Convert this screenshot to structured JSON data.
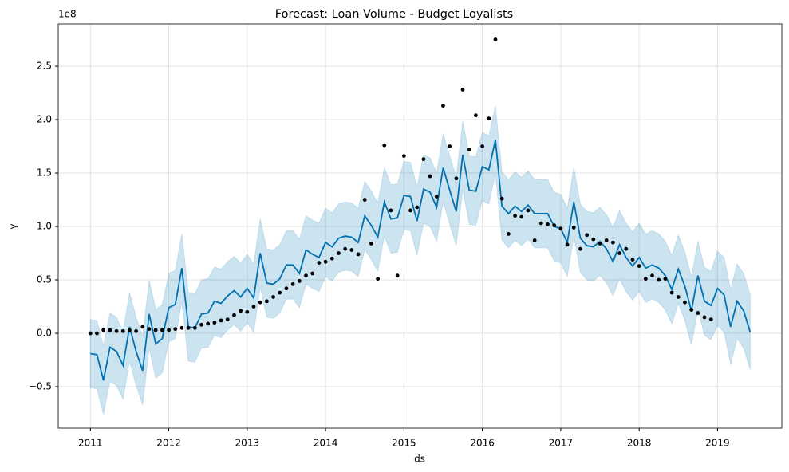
{
  "chart_data": {
    "type": "line",
    "title": "Forecast: Loan Volume - Budget Loyalists",
    "xlabel": "ds",
    "ylabel": "y",
    "y_offset_label": "1e8",
    "grid": true,
    "x": [
      "2011-01",
      "2011-02",
      "2011-03",
      "2011-04",
      "2011-05",
      "2011-06",
      "2011-07",
      "2011-08",
      "2011-09",
      "2011-10",
      "2011-11",
      "2011-12",
      "2012-01",
      "2012-02",
      "2012-03",
      "2012-04",
      "2012-05",
      "2012-06",
      "2012-07",
      "2012-08",
      "2012-09",
      "2012-10",
      "2012-11",
      "2012-12",
      "2013-01",
      "2013-02",
      "2013-03",
      "2013-04",
      "2013-05",
      "2013-06",
      "2013-07",
      "2013-08",
      "2013-09",
      "2013-10",
      "2013-11",
      "2013-12",
      "2014-01",
      "2014-02",
      "2014-03",
      "2014-04",
      "2014-05",
      "2014-06",
      "2014-07",
      "2014-08",
      "2014-09",
      "2014-10",
      "2014-11",
      "2014-12",
      "2015-01",
      "2015-02",
      "2015-03",
      "2015-04",
      "2015-05",
      "2015-06",
      "2015-07",
      "2015-08",
      "2015-09",
      "2015-10",
      "2015-11",
      "2015-12",
      "2016-01",
      "2016-02",
      "2016-03",
      "2016-04",
      "2016-05",
      "2016-06",
      "2016-07",
      "2016-08",
      "2016-09",
      "2016-10",
      "2016-11",
      "2016-12",
      "2017-01",
      "2017-02",
      "2017-03",
      "2017-04",
      "2017-05",
      "2017-06",
      "2017-07",
      "2017-08",
      "2017-09",
      "2017-10",
      "2017-11",
      "2017-12",
      "2018-01",
      "2018-02",
      "2018-03",
      "2018-04",
      "2018-05",
      "2018-06",
      "2018-07",
      "2018-08",
      "2018-09",
      "2018-10",
      "2018-11",
      "2018-12",
      "2019-01",
      "2019-02",
      "2019-03",
      "2019-04",
      "2019-05",
      "2019-06"
    ],
    "band": {
      "color": "#0072b2",
      "upper": [
        0.13,
        0.12,
        -0.12,
        0.19,
        0.15,
        0.02,
        0.38,
        0.15,
        -0.03,
        0.5,
        0.22,
        0.27,
        0.56,
        0.59,
        0.93,
        0.38,
        0.37,
        0.5,
        0.51,
        0.62,
        0.6,
        0.67,
        0.72,
        0.66,
        0.74,
        0.65,
        1.07,
        0.79,
        0.78,
        0.83,
        0.96,
        0.96,
        0.88,
        1.1,
        1.06,
        1.03,
        1.17,
        1.13,
        1.21,
        1.23,
        1.22,
        1.17,
        1.42,
        1.33,
        1.22,
        1.55,
        1.39,
        1.4,
        1.61,
        1.6,
        1.37,
        1.67,
        1.64,
        1.5,
        1.87,
        1.66,
        1.46,
        1.99,
        1.66,
        1.65,
        1.88,
        1.85,
        2.13,
        1.51,
        1.44,
        1.51,
        1.46,
        1.52,
        1.44,
        1.44,
        1.44,
        1.32,
        1.3,
        1.17,
        1.55,
        1.21,
        1.14,
        1.13,
        1.18,
        1.11,
        0.99,
        1.15,
        1.03,
        0.95,
        1.03,
        0.93,
        0.96,
        0.93,
        0.86,
        0.73,
        0.92,
        0.76,
        0.53,
        0.86,
        0.62,
        0.58,
        0.77,
        0.71,
        0.41,
        0.65,
        0.56,
        0.36
      ],
      "lower": [
        -0.51,
        -0.52,
        -0.76,
        -0.45,
        -0.49,
        -0.62,
        -0.26,
        -0.49,
        -0.67,
        -0.14,
        -0.42,
        -0.37,
        -0.08,
        -0.05,
        0.29,
        -0.26,
        -0.27,
        -0.14,
        -0.13,
        -0.02,
        -0.04,
        0.03,
        0.08,
        0.02,
        0.1,
        0.01,
        0.43,
        0.15,
        0.14,
        0.19,
        0.32,
        0.32,
        0.24,
        0.46,
        0.42,
        0.39,
        0.53,
        0.49,
        0.57,
        0.59,
        0.58,
        0.53,
        0.78,
        0.69,
        0.58,
        0.91,
        0.75,
        0.76,
        0.97,
        0.96,
        0.73,
        1.03,
        1.0,
        0.86,
        1.23,
        1.02,
        0.82,
        1.35,
        1.02,
        1.01,
        1.24,
        1.21,
        1.49,
        0.87,
        0.8,
        0.87,
        0.82,
        0.88,
        0.8,
        0.8,
        0.8,
        0.68,
        0.66,
        0.53,
        0.91,
        0.57,
        0.5,
        0.49,
        0.54,
        0.47,
        0.35,
        0.51,
        0.39,
        0.31,
        0.39,
        0.29,
        0.32,
        0.29,
        0.22,
        0.09,
        0.28,
        0.12,
        -0.11,
        0.22,
        -0.02,
        -0.06,
        0.07,
        0.01,
        -0.29,
        -0.05,
        -0.14,
        -0.34
      ]
    },
    "series": [
      {
        "mark": "line",
        "color": "#0072b2",
        "values": [
          -0.19,
          -0.2,
          -0.44,
          -0.13,
          -0.17,
          -0.3,
          0.06,
          -0.17,
          -0.35,
          0.18,
          -0.1,
          -0.05,
          0.24,
          0.27,
          0.61,
          0.06,
          0.05,
          0.18,
          0.19,
          0.3,
          0.28,
          0.35,
          0.4,
          0.34,
          0.42,
          0.33,
          0.75,
          0.47,
          0.46,
          0.51,
          0.64,
          0.64,
          0.56,
          0.78,
          0.74,
          0.71,
          0.85,
          0.81,
          0.89,
          0.91,
          0.9,
          0.85,
          1.1,
          1.01,
          0.9,
          1.23,
          1.07,
          1.08,
          1.29,
          1.28,
          1.05,
          1.35,
          1.32,
          1.18,
          1.55,
          1.34,
          1.14,
          1.67,
          1.34,
          1.33,
          1.56,
          1.53,
          1.81,
          1.19,
          1.12,
          1.19,
          1.14,
          1.2,
          1.12,
          1.12,
          1.12,
          1.0,
          0.98,
          0.85,
          1.23,
          0.89,
          0.82,
          0.81,
          0.86,
          0.79,
          0.67,
          0.83,
          0.71,
          0.63,
          0.71,
          0.61,
          0.64,
          0.61,
          0.54,
          0.41,
          0.6,
          0.44,
          0.21,
          0.54,
          0.3,
          0.26,
          0.42,
          0.36,
          0.06,
          0.3,
          0.21,
          0.01
        ]
      },
      {
        "mark": "dot",
        "color": "#000000",
        "values": [
          0.0,
          0.0,
          0.03,
          0.03,
          0.02,
          0.02,
          0.03,
          0.02,
          0.06,
          0.04,
          0.03,
          0.03,
          0.03,
          0.04,
          0.05,
          0.05,
          0.05,
          0.08,
          0.09,
          0.1,
          0.12,
          0.13,
          0.17,
          0.21,
          0.2,
          0.25,
          0.29,
          0.3,
          0.34,
          0.38,
          0.42,
          0.46,
          0.49,
          0.54,
          0.56,
          0.66,
          0.67,
          0.7,
          0.75,
          0.79,
          0.78,
          0.74,
          1.25,
          0.84,
          0.51,
          1.76,
          1.15,
          0.54,
          1.66,
          1.15,
          1.18,
          1.63,
          1.47,
          1.28,
          2.13,
          1.75,
          1.45,
          2.28,
          1.72,
          2.04,
          1.75,
          2.01,
          2.75,
          1.26,
          0.93,
          1.1,
          1.09,
          1.15,
          0.87,
          1.03,
          1.02,
          1.01,
          0.98,
          0.83,
          0.99,
          0.79,
          0.92,
          0.88,
          0.84,
          0.87,
          0.85,
          0.75,
          0.79,
          0.69,
          0.63,
          0.51,
          0.54,
          0.5,
          0.51,
          0.38,
          0.34,
          0.29,
          0.22,
          0.19,
          0.15,
          0.13,
          null,
          null,
          null,
          null,
          null,
          null
        ]
      }
    ],
    "xlim": [
      2010.59,
      2019.82
    ],
    "xticks": [
      2011,
      2012,
      2013,
      2014,
      2015,
      2016,
      2017,
      2018,
      2019
    ],
    "ylim": [
      -0.888,
      2.896
    ],
    "yticks": [
      {
        "value": -0.5,
        "label": "−0.5"
      },
      {
        "value": 0,
        "label": "0.0"
      },
      {
        "value": 0.5,
        "label": "0.5"
      },
      {
        "value": 1,
        "label": "1.0"
      },
      {
        "value": 1.5,
        "label": "1.5"
      },
      {
        "value": 2,
        "label": "2.0"
      },
      {
        "value": 2.5,
        "label": "2.5"
      }
    ]
  }
}
